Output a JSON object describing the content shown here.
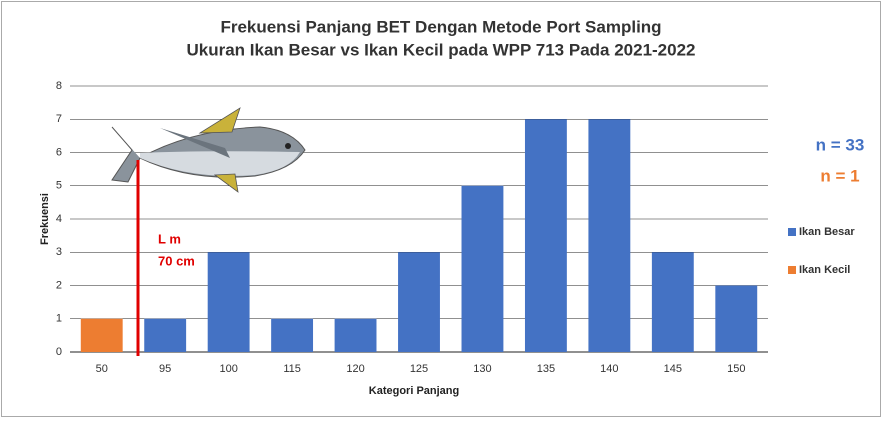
{
  "chart_data": {
    "type": "bar",
    "title": "Frekuensi Panjang BET Dengan Metode Port Sampling",
    "subtitle": "Ukuran Ikan Besar vs Ikan Kecil pada WPP 713 Pada 2021-2022",
    "x_label": "Kategori Panjang",
    "y_label": "Frekuensi",
    "categories": [
      "50",
      "95",
      "100",
      "115",
      "120",
      "125",
      "130",
      "135",
      "140",
      "145",
      "150"
    ],
    "series": [
      {
        "name": "Ikan Besar",
        "color": "#4472c4",
        "values": [
          null,
          1,
          3,
          1,
          1,
          3,
          5,
          7,
          7,
          3,
          2
        ]
      },
      {
        "name": "Ikan Kecil",
        "color": "#ed7d31",
        "values": [
          1,
          null,
          null,
          null,
          null,
          null,
          null,
          null,
          null,
          null,
          null
        ]
      }
    ],
    "ylim": [
      0,
      8
    ],
    "yticks": [
      0,
      1,
      2,
      3,
      4,
      5,
      6,
      7,
      8
    ],
    "grid": true,
    "legend": "right",
    "annotations": [
      {
        "text": "n = 33",
        "color": "#4472c4"
      },
      {
        "text": "n = 1",
        "color": "#ed7d31"
      },
      {
        "text": "L m"
      },
      {
        "text": "70 cm"
      }
    ]
  }
}
